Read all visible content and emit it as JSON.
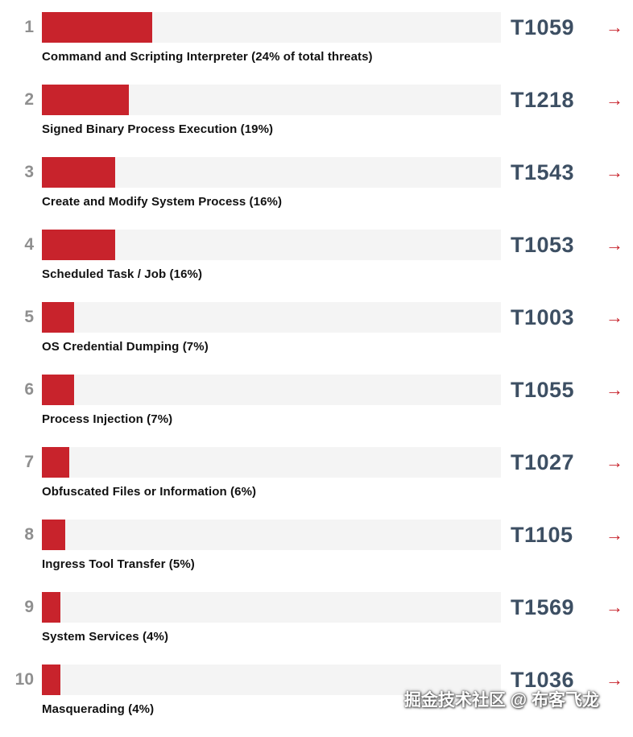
{
  "chart_data": {
    "type": "bar",
    "orientation": "horizontal",
    "title": "",
    "categories": [
      "Command and Scripting Interpreter",
      "Signed Binary Process Execution",
      "Create and Modify System Process",
      "Scheduled Task / Job",
      "OS Credential Dumping",
      "Process Injection",
      "Obfuscated Files or Information",
      "Ingress Tool Transfer",
      "System Services",
      "Masquerading"
    ],
    "values": [
      24,
      19,
      16,
      16,
      7,
      7,
      6,
      5,
      4,
      4
    ],
    "value_unit": "% of total threats",
    "technique_ids": [
      "T1059",
      "T1218",
      "T1543",
      "T1053",
      "T1003",
      "T1055",
      "T1027",
      "T1105",
      "T1569",
      "T1036"
    ],
    "xlim": [
      0,
      100
    ],
    "grid": false,
    "legend": false
  },
  "rows": [
    {
      "rank": "1",
      "label": "Command and Scripting Interpreter (24% of total threats)",
      "id": "T1059",
      "arrow": "→"
    },
    {
      "rank": "2",
      "label": "Signed Binary Process Execution (19%)",
      "id": "T1218",
      "arrow": "→"
    },
    {
      "rank": "3",
      "label": "Create and Modify System Process (16%)",
      "id": "T1543",
      "arrow": "→"
    },
    {
      "rank": "4",
      "label": "Scheduled Task / Job (16%)",
      "id": "T1053",
      "arrow": "→"
    },
    {
      "rank": "5",
      "label": "OS Credential Dumping (7%)",
      "id": "T1003",
      "arrow": "→"
    },
    {
      "rank": "6",
      "label": "Process Injection (7%)",
      "id": "T1055",
      "arrow": "→"
    },
    {
      "rank": "7",
      "label": "Obfuscated Files or Information (6%)",
      "id": "T1027",
      "arrow": "→"
    },
    {
      "rank": "8",
      "label": "Ingress Tool Transfer (5%)",
      "id": "T1105",
      "arrow": "→"
    },
    {
      "rank": "9",
      "label": "System Services (4%)",
      "id": "T1569",
      "arrow": "→"
    },
    {
      "rank": "10",
      "label": "Masquerading (4%)",
      "id": "T1036",
      "arrow": "→"
    }
  ],
  "watermark": "掘金技术社区 @ 布客飞龙",
  "colors": {
    "bar": "#c8232c",
    "track": "#f4f4f4",
    "id": "#3d4f63",
    "rank": "#8f8f8f",
    "label": "#111111"
  }
}
